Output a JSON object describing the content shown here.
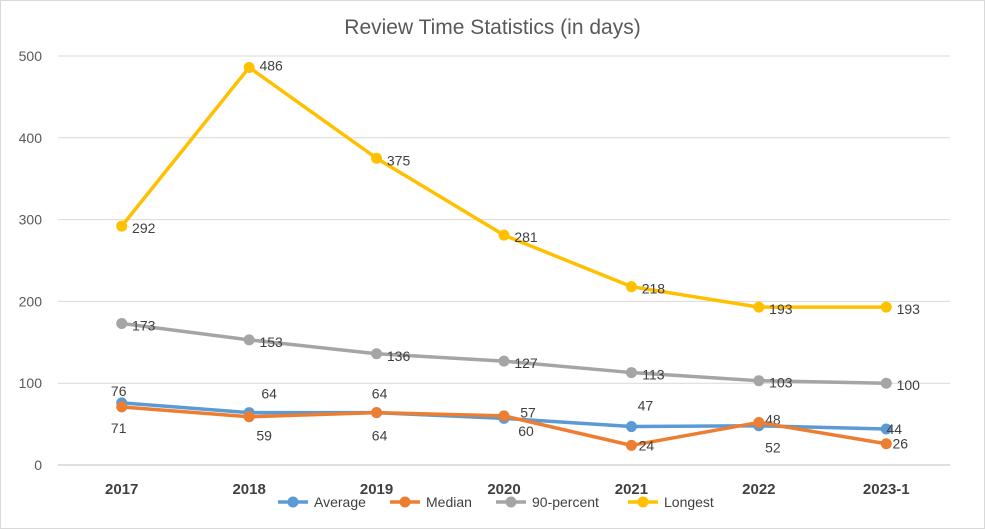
{
  "chart_data": {
    "type": "line",
    "title": "Review Time Statistics (in days)",
    "xlabel": "",
    "ylabel": "",
    "categories": [
      "2017",
      "2018",
      "2019",
      "2020",
      "2021",
      "2022",
      "2023-1"
    ],
    "ylim": [
      0,
      500
    ],
    "yticks": [
      0,
      100,
      200,
      300,
      400,
      500
    ],
    "grid": true,
    "legend_position": "bottom",
    "series": [
      {
        "name": "Average",
        "color": "#5b9bd5",
        "values": [
          76,
          64,
          64,
          57,
          47,
          48,
          44
        ]
      },
      {
        "name": "Median",
        "color": "#ed7d31",
        "values": [
          71,
          59,
          64,
          60,
          24,
          52,
          26
        ]
      },
      {
        "name": "90-percent",
        "color": "#a5a5a5",
        "values": [
          173,
          153,
          136,
          127,
          113,
          103,
          100
        ]
      },
      {
        "name": "Longest",
        "color": "#ffc000",
        "values": [
          292,
          486,
          375,
          281,
          218,
          193,
          193
        ]
      }
    ]
  }
}
